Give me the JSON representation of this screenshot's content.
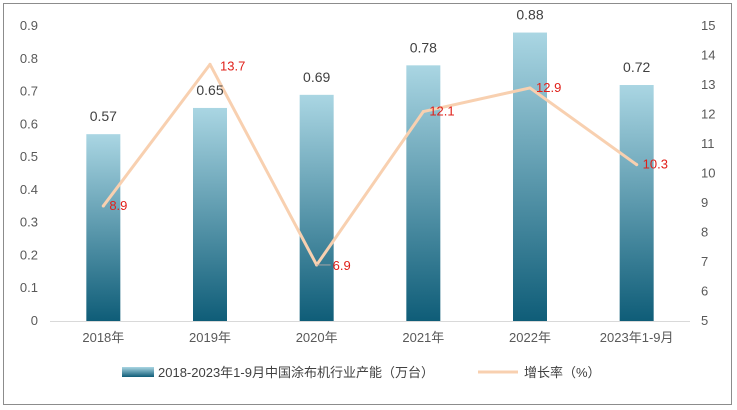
{
  "chart_data": {
    "type": "bar+line",
    "categories": [
      "2018年",
      "2019年",
      "2020年",
      "2021年",
      "2022年",
      "2023年1-9月"
    ],
    "series": [
      {
        "name": "2018-2023年1-9月中国涂布机行业产能（万台）",
        "type": "bar",
        "axis": "left",
        "values": [
          0.57,
          0.65,
          0.69,
          0.78,
          0.88,
          0.72
        ],
        "labels": [
          "0.57",
          "0.65",
          "0.69",
          "0.78",
          "0.88",
          "0.72"
        ]
      },
      {
        "name": "增长率（%）",
        "type": "line",
        "axis": "right",
        "values": [
          8.9,
          13.7,
          6.9,
          12.1,
          12.9,
          10.3
        ],
        "labels": [
          "8.9",
          "13.7",
          "6.9",
          "12.1",
          "12.9",
          "10.3"
        ]
      }
    ],
    "y_left": {
      "min": 0,
      "max": 0.9,
      "ticks": [
        "0",
        "0.1",
        "0.2",
        "0.3",
        "0.4",
        "0.5",
        "0.6",
        "0.7",
        "0.8",
        "0.9"
      ]
    },
    "y_right": {
      "min": 5,
      "max": 15,
      "ticks": [
        "5",
        "6",
        "7",
        "8",
        "9",
        "10",
        "11",
        "12",
        "13",
        "14",
        "15"
      ]
    },
    "legend_position": "bottom",
    "grid": false,
    "colors": {
      "bar_top": "#aad6e3",
      "bar_bottom": "#0f5d78",
      "line": "#f8d0b0",
      "line_label": "#e0201a"
    }
  }
}
